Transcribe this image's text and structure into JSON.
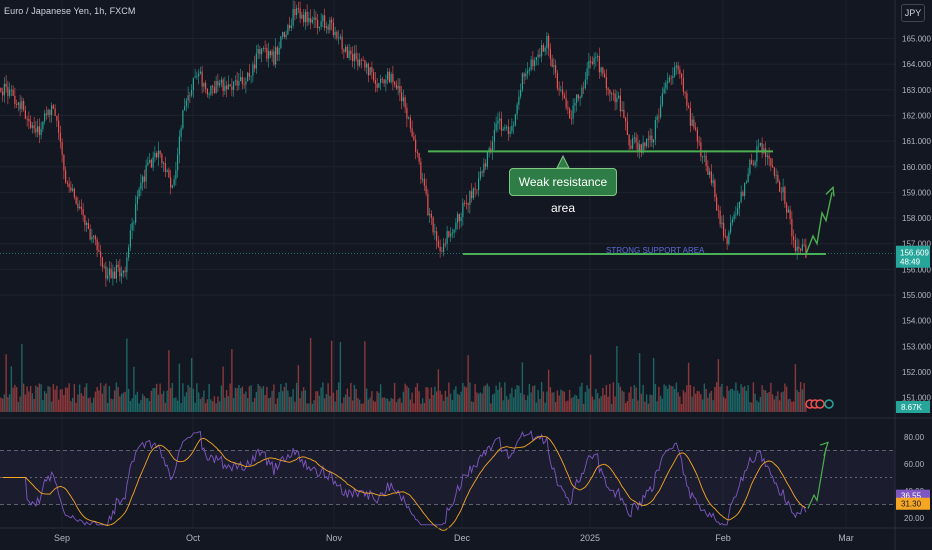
{
  "header": {
    "symbol": "Euro / Japanese Yen, 1h, FXCM",
    "currency_button": "JPY"
  },
  "annotations": {
    "resistance_label": "Weak resistance area",
    "support_label": "STRONG SUPPORT AREA"
  },
  "badges": {
    "last_price": "156.609",
    "countdown": "48:49",
    "volume": "8.67K",
    "rsi_value": "36.55",
    "rsi_ma_value": "31.30"
  },
  "colors": {
    "background": "#131722",
    "up_candle": "#26a69a",
    "down_candle": "#ef5350",
    "annotation_green": "#4caf50",
    "rsi_line": "#7e57c2",
    "rsi_ma": "#f5a623"
  },
  "chart_data": [
    {
      "type": "candlestick",
      "title": "Euro / Japanese Yen, 1h, FXCM",
      "x_ticks": [
        "Sep",
        "Oct",
        "Nov",
        "Dec",
        "2025",
        "Feb",
        "Mar"
      ],
      "y_ticks": [
        155,
        156,
        157,
        158,
        159,
        160,
        161,
        162,
        163,
        164,
        165
      ],
      "y_range": [
        150.5,
        166.5
      ],
      "close_path": [
        [
          0,
          163.1
        ],
        [
          3,
          162.6
        ],
        [
          6,
          161.3
        ],
        [
          9,
          162.3
        ],
        [
          11,
          159.6
        ],
        [
          13,
          158.5
        ],
        [
          16,
          157.0
        ],
        [
          18,
          155.8
        ],
        [
          21,
          156.0
        ],
        [
          23,
          158.7
        ],
        [
          25,
          160.1
        ],
        [
          27,
          160.5
        ],
        [
          29,
          159.1
        ],
        [
          31,
          162.3
        ],
        [
          33,
          163.8
        ],
        [
          35,
          163.0
        ],
        [
          37,
          163.2
        ],
        [
          39,
          163.1
        ],
        [
          42,
          163.6
        ],
        [
          44,
          164.6
        ],
        [
          46,
          164.2
        ],
        [
          48,
          165.3
        ],
        [
          50,
          166.2
        ],
        [
          52,
          165.6
        ],
        [
          54,
          165.7
        ],
        [
          56,
          165.4
        ],
        [
          58,
          164.6
        ],
        [
          60,
          164.2
        ],
        [
          62,
          163.7
        ],
        [
          64,
          163.2
        ],
        [
          66,
          163.6
        ],
        [
          68,
          162.4
        ],
        [
          70,
          160.7
        ],
        [
          72,
          158.4
        ],
        [
          74,
          156.7
        ],
        [
          76,
          157.6
        ],
        [
          78,
          158.4
        ],
        [
          80,
          159.2
        ],
        [
          82,
          160.3
        ],
        [
          84,
          161.8
        ],
        [
          86,
          161.2
        ],
        [
          88,
          163.5
        ],
        [
          90,
          164.2
        ],
        [
          92,
          164.9
        ],
        [
          94,
          163.0
        ],
        [
          96,
          162.0
        ],
        [
          98,
          163.2
        ],
        [
          100,
          164.4
        ],
        [
          102,
          163.2
        ],
        [
          104,
          162.6
        ],
        [
          106,
          161.0
        ],
        [
          108,
          160.7
        ],
        [
          110,
          161.3
        ],
        [
          112,
          163.1
        ],
        [
          114,
          164.0
        ],
        [
          116,
          162.0
        ],
        [
          118,
          160.6
        ],
        [
          120,
          159.3
        ],
        [
          122,
          157.0
        ],
        [
          124,
          158.2
        ],
        [
          126,
          159.9
        ],
        [
          128,
          160.8
        ],
        [
          130,
          159.8
        ],
        [
          132,
          158.9
        ],
        [
          134,
          156.8
        ],
        [
          136,
          156.6
        ]
      ],
      "close_x_scale": [
        0,
        136
      ],
      "last_price": 156.609,
      "shapes": {
        "resistance_line": {
          "price": 160.6,
          "from": "late Nov",
          "to": "mid Feb"
        },
        "support_line": {
          "price": 156.6,
          "from": "late Nov",
          "to": "late Feb"
        },
        "projection": [
          156.6,
          157.3,
          157.0,
          158.2,
          157.9,
          159.0
        ]
      }
    },
    {
      "type": "bar",
      "title": "Volume",
      "last_value": "8.67K"
    },
    {
      "type": "line",
      "title": "RSI",
      "y_ticks": [
        20,
        40,
        60,
        80
      ],
      "bands": [
        30,
        50,
        70
      ],
      "last_rsi": 36.55,
      "last_ma": 31.3
    }
  ]
}
